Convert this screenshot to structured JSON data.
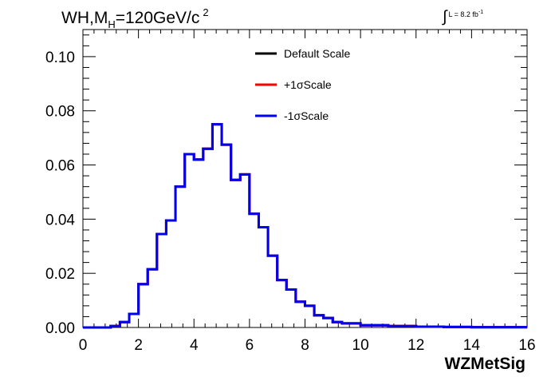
{
  "title": {
    "main": "WH,M",
    "sub": "H",
    "rest": "=120GeV/c",
    "sup": "2"
  },
  "lumi": {
    "integral": "∫",
    "text": "L = 8.2 fb",
    "sup": "-1"
  },
  "chart_data": {
    "type": "histogram",
    "xlabel": "WZMetSig",
    "ylabel": "",
    "xlim": [
      0,
      16
    ],
    "ylim": [
      0,
      0.11
    ],
    "xticks": [
      0,
      2,
      4,
      6,
      8,
      10,
      12,
      14,
      16
    ],
    "yticks": [
      0.0,
      0.02,
      0.04,
      0.06,
      0.08,
      0.1
    ],
    "ytick_labels": [
      "0.00",
      "0.02",
      "0.04",
      "0.06",
      "0.08",
      "0.10"
    ],
    "grid": false,
    "legend_position": "top-right",
    "bin_width": 0.3333,
    "bin_start": 0,
    "series": [
      {
        "name": "Default Scale",
        "color": "#000000",
        "values": [
          0,
          0,
          0,
          0.0005,
          0.002,
          0.005,
          0.016,
          0.0215,
          0.0345,
          0.0395,
          0.052,
          0.064,
          0.062,
          0.066,
          0.075,
          0.0675,
          0.0545,
          0.0565,
          0.042,
          0.037,
          0.0265,
          0.0175,
          0.014,
          0.0095,
          0.008,
          0.0045,
          0.0035,
          0.002,
          0.0015,
          0.0015,
          0.0008,
          0.0008,
          0.0008,
          0.0005,
          0.0005,
          0.0005,
          0.0003,
          0.0003,
          0.0003,
          0.0002,
          0.0002,
          0.0002,
          0.0001,
          0.0001,
          0.0001,
          0.0001,
          0.0001,
          0.0001
        ]
      },
      {
        "name": "+1σScale",
        "color": "#ff0000",
        "values": [
          0,
          0,
          0,
          0.0005,
          0.002,
          0.005,
          0.016,
          0.0215,
          0.0345,
          0.0395,
          0.052,
          0.064,
          0.062,
          0.066,
          0.075,
          0.0675,
          0.0545,
          0.0565,
          0.042,
          0.037,
          0.0265,
          0.0175,
          0.014,
          0.0095,
          0.008,
          0.0045,
          0.0035,
          0.002,
          0.0015,
          0.0015,
          0.0008,
          0.0008,
          0.0008,
          0.0005,
          0.0005,
          0.0005,
          0.0003,
          0.0003,
          0.0003,
          0.0002,
          0.0002,
          0.0002,
          0.0001,
          0.0001,
          0.0001,
          0.0001,
          0.0001,
          0.0001
        ]
      },
      {
        "name": "-1σScale",
        "color": "#0000ee",
        "values": [
          0,
          0,
          0,
          0.0005,
          0.002,
          0.005,
          0.016,
          0.0215,
          0.0345,
          0.0395,
          0.052,
          0.064,
          0.062,
          0.066,
          0.075,
          0.0675,
          0.0545,
          0.0565,
          0.042,
          0.037,
          0.0265,
          0.0175,
          0.014,
          0.0095,
          0.008,
          0.0045,
          0.0035,
          0.002,
          0.0015,
          0.0015,
          0.0008,
          0.0008,
          0.0008,
          0.0005,
          0.0005,
          0.0005,
          0.0003,
          0.0003,
          0.0003,
          0.0002,
          0.0002,
          0.0002,
          0.0001,
          0.0001,
          0.0001,
          0.0001,
          0.0001,
          0.0001
        ]
      }
    ]
  }
}
